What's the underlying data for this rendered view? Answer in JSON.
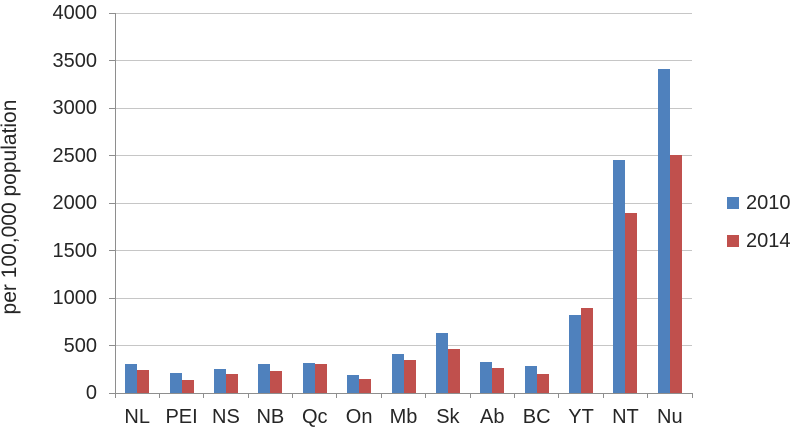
{
  "chart_data": {
    "type": "bar",
    "title": "",
    "xlabel": "",
    "ylabel": "per 100,000 population",
    "ylim": [
      0,
      4000
    ],
    "ytick_step": 500,
    "grid": true,
    "legend_position": "right",
    "categories": [
      "NL",
      "PEI",
      "NS",
      "NB",
      "Qc",
      "On",
      "Mb",
      "Sk",
      "Ab",
      "BC",
      "YT",
      "NT",
      "Nu"
    ],
    "series": [
      {
        "name": "2010",
        "color": "#4F81BD",
        "values": [
          305,
          215,
          255,
          305,
          315,
          185,
          410,
          630,
          330,
          280,
          820,
          2450,
          3415
        ]
      },
      {
        "name": "2014",
        "color": "#C0504D",
        "values": [
          245,
          140,
          195,
          235,
          300,
          145,
          345,
          465,
          265,
          195,
          890,
          1890,
          2500
        ]
      }
    ]
  },
  "colors": {
    "gridline": "#C6C6C6",
    "axis": "#8E8E8E",
    "text": "#262626",
    "background": "#FFFFFF"
  }
}
